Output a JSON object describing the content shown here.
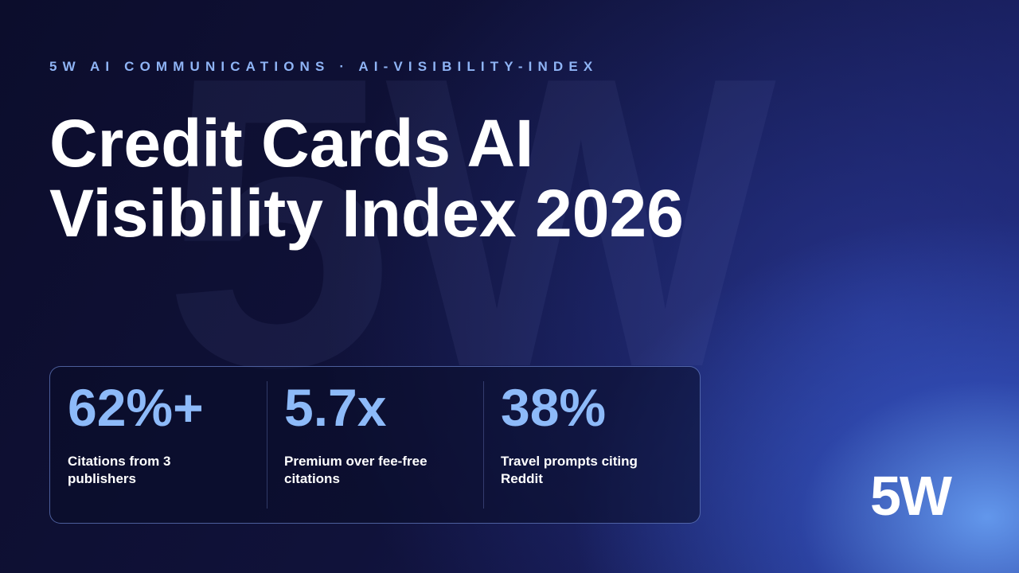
{
  "watermark": "5W",
  "eyebrow": "5W AI COMMUNICATIONS · AI-VISIBILITY-INDEX",
  "title": "Credit Cards AI Visibility Index 2026",
  "stats": [
    {
      "value": "62%+",
      "label": "Citations from 3 publishers"
    },
    {
      "value": "5.7x",
      "label": "Premium over fee-free citations"
    },
    {
      "value": "38%",
      "label": "Travel prompts citing Reddit"
    }
  ],
  "logo": "5W"
}
